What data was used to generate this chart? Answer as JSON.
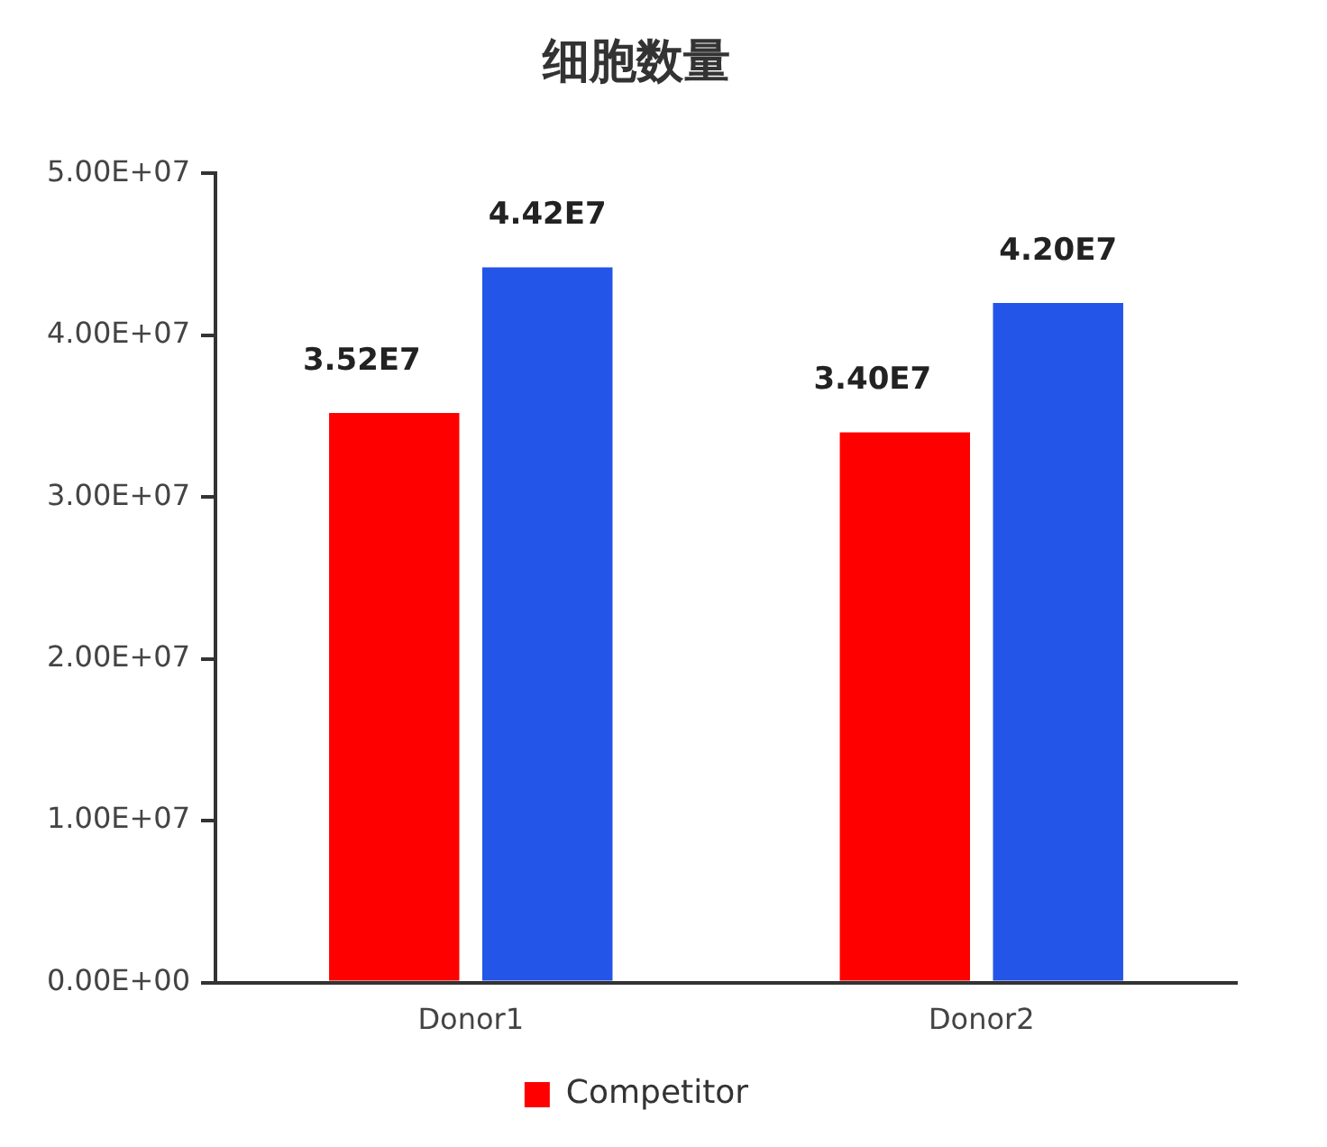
{
  "chart_data": {
    "type": "bar",
    "title": "细胞数量",
    "categories": [
      "Donor1",
      "Donor2"
    ],
    "series": [
      {
        "name": "Competitor",
        "color": "#ff0000",
        "values": [
          35200000,
          34000000
        ],
        "value_labels": [
          "3.52E7",
          "3.40E7"
        ]
      },
      {
        "color": "#2255e8",
        "values": [
          44200000,
          42000000
        ],
        "value_labels": [
          "4.42E7",
          "4.20E7"
        ]
      }
    ],
    "ylim": [
      0,
      50000000
    ],
    "yticks": [
      {
        "value": 0,
        "label": "0.00E+00"
      },
      {
        "value": 10000000,
        "label": "1.00E+07"
      },
      {
        "value": 20000000,
        "label": "2.00E+07"
      },
      {
        "value": 30000000,
        "label": "3.00E+07"
      },
      {
        "value": 40000000,
        "label": "4.00E+07"
      },
      {
        "value": 50000000,
        "label": "5.00E+07"
      }
    ],
    "grid": false,
    "legend": "bottom"
  }
}
